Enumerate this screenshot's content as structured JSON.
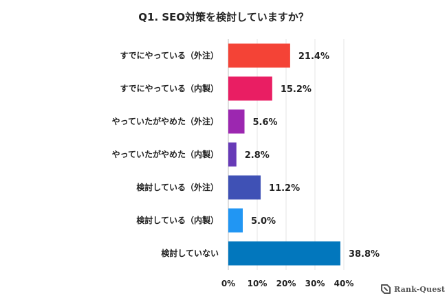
{
  "chart_data": {
    "type": "bar",
    "orientation": "horizontal",
    "title": "Q1. SEO対策を検討していますか？",
    "categories": [
      "すでにやっている（外注）",
      "すでにやっている（内製）",
      "やっていたがやめた（外注）",
      "やっていたがやめた（内製）",
      "検討している（外注）",
      "検討している（内製）",
      "検討していない"
    ],
    "values": [
      21.4,
      15.2,
      5.6,
      2.8,
      11.2,
      5.0,
      38.8
    ],
    "value_labels": [
      "21.4%",
      "15.2%",
      "5.6%",
      "2.8%",
      "11.2%",
      "5.0%",
      "38.8%"
    ],
    "colors": [
      "#f44336",
      "#e91e63",
      "#9c27b0",
      "#673ab7",
      "#3f51b5",
      "#2196f3",
      "#0277bd"
    ],
    "xlim": [
      0,
      40
    ],
    "xticks": [
      0,
      10,
      20,
      30,
      40
    ],
    "xtick_labels": [
      "0%",
      "10%",
      "20%",
      "30%",
      "40%"
    ],
    "grid": true,
    "legend": "none",
    "xlabel": "",
    "ylabel": ""
  },
  "brand": {
    "text": "Rank-Quest",
    "icon": "rank-quest-logo-icon"
  }
}
